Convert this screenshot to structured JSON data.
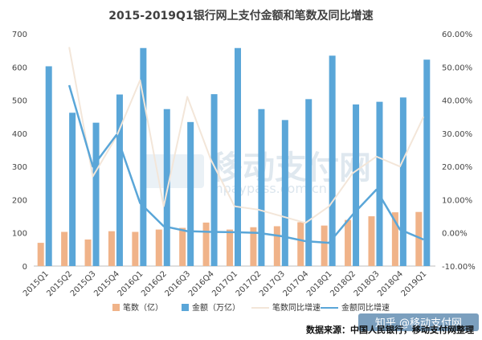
{
  "chart_data": {
    "type": "bar",
    "title": "2015-2019Q1银行网上支付金额和笔数及同比增速",
    "categories": [
      "2015Q1",
      "2015Q2",
      "2015Q3",
      "2015Q4",
      "2016Q1",
      "2016Q2",
      "2016Q3",
      "2016Q4",
      "2017Q1",
      "2017Q2",
      "2017Q3",
      "2017Q4",
      "2018Q1",
      "2018Q2",
      "2018Q3",
      "2018Q4",
      "2019Q1"
    ],
    "left_axis": {
      "ylim": [
        0,
        700
      ],
      "ticks": [
        "0",
        "100",
        "200",
        "300",
        "400",
        "500",
        "600",
        "700"
      ]
    },
    "right_axis": {
      "ylim": [
        -10,
        60
      ],
      "ticks": [
        "-10.00%",
        "0.00%",
        "10.00%",
        "20.00%",
        "30.00%",
        "40.00%",
        "50.00%",
        "60.00%"
      ]
    },
    "series": [
      {
        "name": "笔数（亿）",
        "type": "bar",
        "axis": "left",
        "color": "#f0b389",
        "values": [
          70,
          103,
          80,
          105,
          103,
          110,
          115,
          131,
          110,
          117,
          120,
          132,
          122,
          139,
          150,
          162,
          163
        ]
      },
      {
        "name": "金额（万亿）",
        "type": "bar",
        "axis": "left",
        "color": "#5aa6d8",
        "values": [
          602,
          462,
          432,
          517,
          657,
          473,
          434,
          518,
          657,
          473,
          440,
          503,
          634,
          487,
          495,
          508,
          622
        ]
      },
      {
        "name": "笔数同比增速",
        "type": "line",
        "axis": "right",
        "color": "#f3e6d9",
        "values": [
          null,
          56,
          17,
          29,
          46,
          8,
          41,
          22,
          8,
          7,
          5,
          3,
          8,
          18,
          23,
          20,
          35
        ]
      },
      {
        "name": "金额同比增速",
        "type": "line",
        "axis": "right",
        "color": "#5aa6d8",
        "values": [
          null,
          44.5,
          20,
          29.5,
          9,
          2,
          0.5,
          0.3,
          0.2,
          0,
          -1,
          -2.5,
          -3,
          5.5,
          13,
          1,
          -2
        ]
      }
    ],
    "legend_position": "bottom",
    "grid": false
  },
  "source_note": "数据来源：中国人民银行，移动支付网整理",
  "watermark": {
    "brand": "移动支付网",
    "url": "mpaypass.com.cn"
  },
  "zhihu_mark": "知乎 @移动支付网"
}
